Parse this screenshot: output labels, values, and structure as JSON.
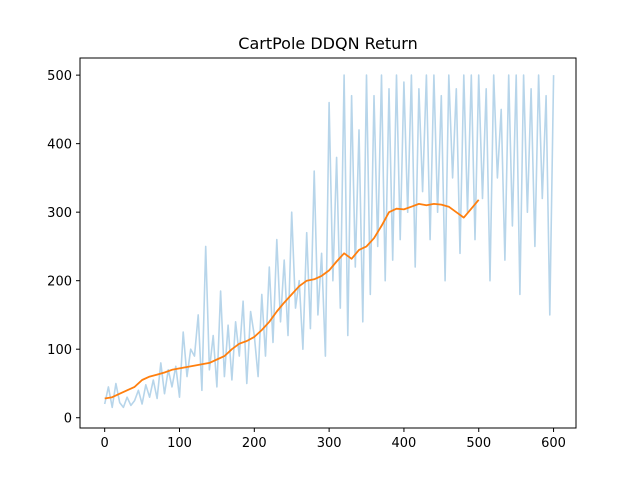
{
  "chart_data": {
    "type": "line",
    "title": "CartPole DDQN Return",
    "xlabel": "",
    "ylabel": "",
    "xlim": [
      -33,
      630
    ],
    "ylim": [
      -15,
      525
    ],
    "xticks": [
      0,
      100,
      200,
      300,
      400,
      500,
      600
    ],
    "yticks": [
      0,
      100,
      200,
      300,
      400,
      500
    ],
    "grid": false,
    "legend": "none",
    "series": [
      {
        "color": "#b7d5ea",
        "x": [
          0,
          5,
          10,
          15,
          20,
          25,
          30,
          35,
          40,
          45,
          50,
          55,
          60,
          65,
          70,
          75,
          80,
          85,
          90,
          95,
          100,
          105,
          110,
          115,
          120,
          125,
          130,
          135,
          140,
          145,
          150,
          155,
          160,
          165,
          170,
          175,
          180,
          185,
          190,
          195,
          200,
          205,
          210,
          215,
          220,
          225,
          230,
          235,
          240,
          245,
          250,
          255,
          260,
          265,
          270,
          275,
          280,
          285,
          290,
          295,
          300,
          305,
          310,
          315,
          320,
          325,
          330,
          335,
          340,
          345,
          350,
          355,
          360,
          365,
          370,
          375,
          380,
          385,
          390,
          395,
          400,
          405,
          410,
          415,
          420,
          425,
          430,
          435,
          440,
          445,
          450,
          455,
          460,
          465,
          470,
          475,
          480,
          485,
          490,
          495,
          500,
          505,
          510,
          515,
          520,
          525,
          530,
          535,
          540,
          545,
          550,
          555,
          560,
          565,
          570,
          575,
          580,
          585,
          590,
          595,
          600
        ],
        "values": [
          20,
          45,
          15,
          50,
          22,
          15,
          30,
          18,
          25,
          40,
          20,
          48,
          30,
          55,
          28,
          80,
          35,
          70,
          45,
          75,
          30,
          125,
          60,
          100,
          90,
          150,
          40,
          250,
          70,
          120,
          45,
          185,
          60,
          135,
          55,
          140,
          90,
          170,
          50,
          155,
          120,
          60,
          180,
          90,
          220,
          110,
          260,
          140,
          230,
          120,
          300,
          160,
          200,
          100,
          270,
          130,
          360,
          150,
          240,
          90,
          460,
          200,
          380,
          160,
          500,
          120,
          470,
          220,
          420,
          140,
          500,
          180,
          470,
          250,
          500,
          200,
          480,
          230,
          500,
          260,
          490,
          300,
          500,
          220,
          480,
          330,
          500,
          260,
          500,
          300,
          470,
          200,
          500,
          350,
          480,
          240,
          500,
          300,
          500,
          260,
          500,
          320,
          480,
          200,
          500,
          350,
          450,
          230,
          500,
          280,
          500,
          180,
          500,
          300,
          480,
          250,
          500,
          320,
          470,
          150,
          500
        ]
      },
      {
        "color": "#ff7f0e",
        "x": [
          0,
          10,
          20,
          30,
          40,
          50,
          60,
          70,
          80,
          90,
          100,
          110,
          120,
          130,
          140,
          150,
          160,
          170,
          180,
          190,
          200,
          210,
          220,
          230,
          240,
          250,
          260,
          270,
          280,
          290,
          300,
          310,
          320,
          330,
          340,
          350,
          360,
          370,
          380,
          390,
          400,
          410,
          420,
          430,
          440,
          450,
          460,
          470,
          480,
          490,
          500
        ],
        "values": [
          28,
          30,
          35,
          40,
          45,
          55,
          60,
          63,
          66,
          70,
          72,
          74,
          76,
          78,
          80,
          85,
          90,
          100,
          108,
          112,
          118,
          128,
          140,
          155,
          168,
          180,
          192,
          200,
          202,
          207,
          215,
          228,
          240,
          232,
          245,
          250,
          262,
          280,
          300,
          305,
          304,
          308,
          312,
          310,
          312,
          311,
          308,
          300,
          292,
          305,
          318
        ]
      }
    ]
  }
}
